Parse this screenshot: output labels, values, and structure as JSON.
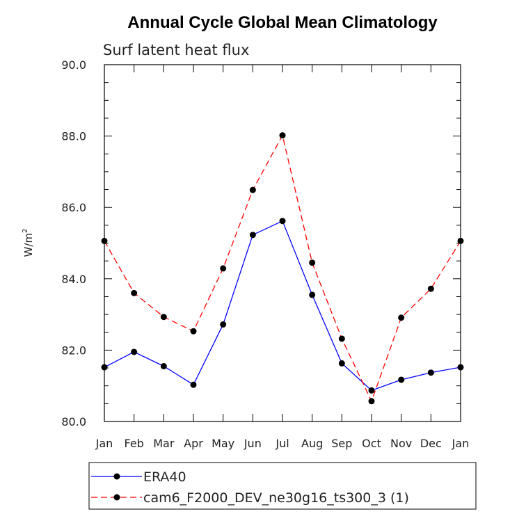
{
  "chart_data": {
    "type": "line",
    "title": "Annual Cycle Global Mean Climatology",
    "subtitle": "Surf latent heat flux",
    "ylabel": "W/m",
    "ylabel_superscript": "2",
    "xlabel": "",
    "categories": [
      "Jan",
      "Feb",
      "Mar",
      "Apr",
      "May",
      "Jun",
      "Jul",
      "Aug",
      "Sep",
      "Oct",
      "Nov",
      "Dec",
      "Jan"
    ],
    "ylim": [
      80.0,
      90.0
    ],
    "yticks": [
      80.0,
      82.0,
      84.0,
      86.0,
      88.0,
      90.0
    ],
    "ytick_labels": [
      "80.0",
      "82.0",
      "84.0",
      "86.0",
      "88.0",
      "90.0"
    ],
    "grid": false,
    "legend_position": "bottom",
    "series": [
      {
        "name": "ERA40",
        "color": "#0000ff",
        "dash": "solid",
        "values": [
          81.52,
          81.95,
          81.55,
          81.03,
          82.72,
          85.23,
          85.62,
          83.55,
          81.63,
          80.87,
          81.17,
          81.37,
          81.52
        ]
      },
      {
        "name": "cam6_F2000_DEV_ne30g16_ts300_3 (1)",
        "color": "#ff0000",
        "dash": "dashed",
        "values": [
          85.06,
          83.6,
          82.93,
          82.53,
          84.29,
          86.49,
          88.02,
          84.45,
          82.32,
          80.57,
          82.91,
          83.72,
          85.06
        ]
      }
    ]
  }
}
